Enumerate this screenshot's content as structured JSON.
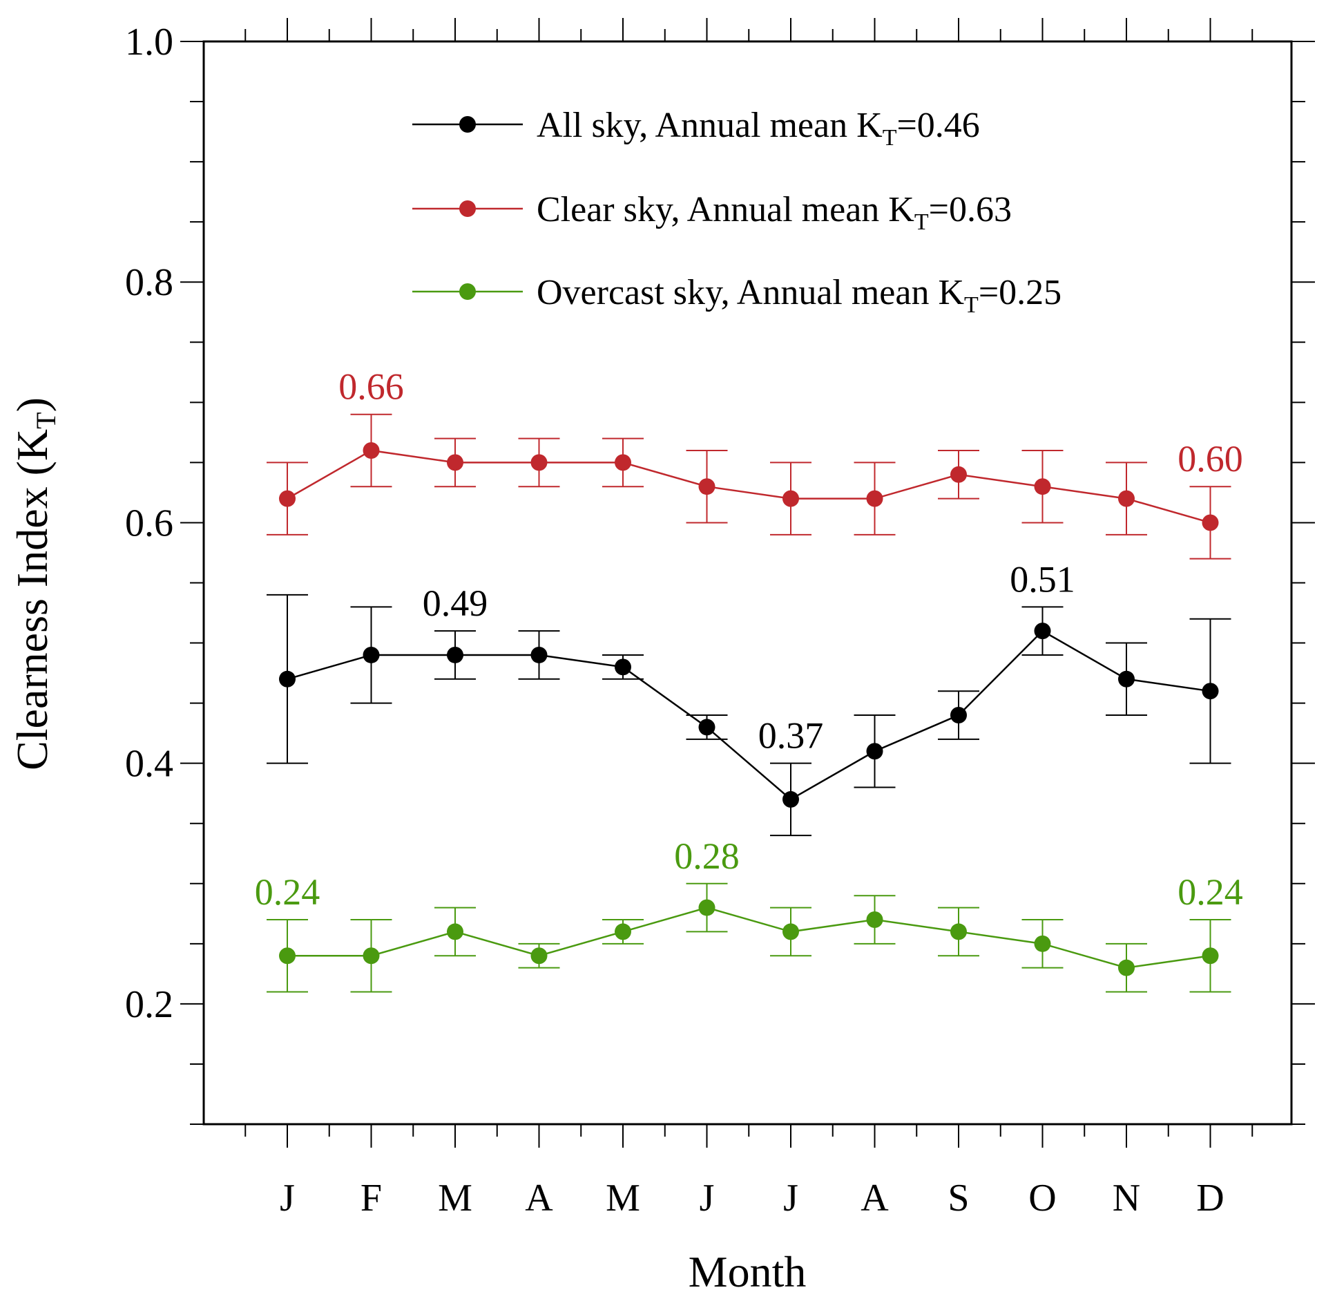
{
  "chart_data": {
    "type": "line",
    "xlabel": "Month",
    "ylabel_main": "Clearness Index (K",
    "ylabel_sub": "T",
    "ylabel_end": ")",
    "categories": [
      "J",
      "F",
      "M",
      "A",
      "M",
      "J",
      "J",
      "A",
      "S",
      "O",
      "N",
      "D"
    ],
    "ylim": [
      0.1,
      1.0
    ],
    "yticks": [
      "0.2",
      "0.4",
      "0.6",
      "0.8",
      "1.0"
    ],
    "series": [
      {
        "name": "All sky",
        "color": "#000000",
        "legend_main": "All sky, Annual mean K",
        "legend_sub": "T",
        "legend_end": "=0.46",
        "values": [
          0.47,
          0.49,
          0.49,
          0.49,
          0.48,
          0.43,
          0.37,
          0.41,
          0.44,
          0.51,
          0.47,
          0.46
        ],
        "err_upper": [
          0.54,
          0.53,
          0.51,
          0.51,
          0.49,
          0.44,
          0.4,
          0.44,
          0.46,
          0.53,
          0.5,
          0.52
        ],
        "err_lower": [
          0.4,
          0.45,
          0.47,
          0.47,
          0.47,
          0.42,
          0.34,
          0.38,
          0.42,
          0.49,
          0.44,
          0.4
        ],
        "labels": [
          {
            "index": 2,
            "text": "0.49"
          },
          {
            "index": 6,
            "text": "0.37"
          },
          {
            "index": 9,
            "text": "0.51"
          }
        ]
      },
      {
        "name": "Clear sky",
        "color": "#c0282d",
        "legend_main": "Clear sky, Annual mean K",
        "legend_sub": "T",
        "legend_end": "=0.63",
        "values": [
          0.62,
          0.66,
          0.65,
          0.65,
          0.65,
          0.63,
          0.62,
          0.62,
          0.64,
          0.63,
          0.62,
          0.6
        ],
        "err_upper": [
          0.65,
          0.69,
          0.67,
          0.67,
          0.67,
          0.66,
          0.65,
          0.65,
          0.66,
          0.66,
          0.65,
          0.63
        ],
        "err_lower": [
          0.59,
          0.63,
          0.63,
          0.63,
          0.63,
          0.6,
          0.59,
          0.59,
          0.62,
          0.6,
          0.59,
          0.57
        ],
        "labels": [
          {
            "index": 1,
            "text": "0.66"
          },
          {
            "index": 11,
            "text": "0.60"
          }
        ]
      },
      {
        "name": "Overcast sky",
        "color": "#4a9a10",
        "legend_main": "Overcast sky, Annual mean K",
        "legend_sub": "T",
        "legend_end": "=0.25",
        "values": [
          0.24,
          0.24,
          0.26,
          0.24,
          0.26,
          0.28,
          0.26,
          0.27,
          0.26,
          0.25,
          0.23,
          0.24
        ],
        "err_upper": [
          0.27,
          0.27,
          0.28,
          0.25,
          0.27,
          0.3,
          0.28,
          0.29,
          0.28,
          0.27,
          0.25,
          0.27
        ],
        "err_lower": [
          0.21,
          0.21,
          0.24,
          0.23,
          0.25,
          0.26,
          0.24,
          0.25,
          0.24,
          0.23,
          0.21,
          0.21
        ],
        "labels": [
          {
            "index": 0,
            "text": "0.24"
          },
          {
            "index": 5,
            "text": "0.28"
          },
          {
            "index": 11,
            "text": "0.24"
          }
        ]
      }
    ]
  }
}
